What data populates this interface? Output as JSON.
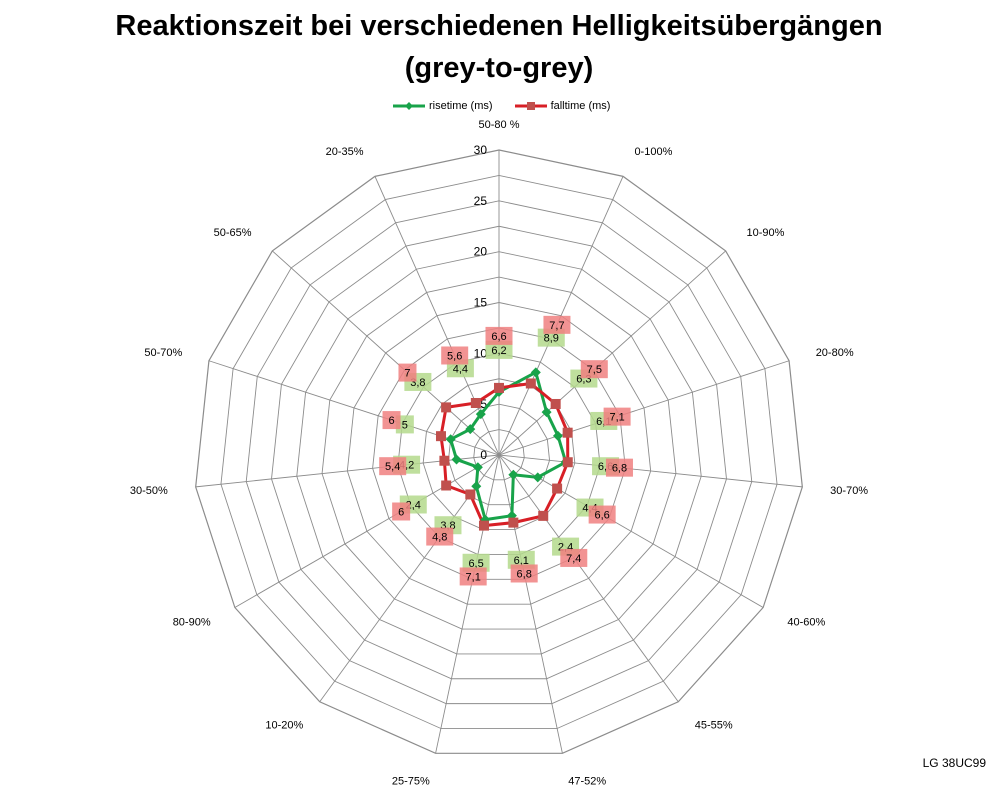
{
  "chart_data": {
    "type": "radar",
    "title": "Reaktionszeit bei verschiedenen Helligkeitsübergängen",
    "subtitle": "(grey-to-grey)",
    "categories": [
      "50-80 %",
      "0-100%",
      "10-90%",
      "20-80%",
      "30-70%",
      "40-60%",
      "45-55%",
      "47-52%",
      "25-75%",
      "10-20%",
      "80-90%",
      "30-50%",
      "50-70%",
      "50-65%",
      "20-35%"
    ],
    "radial_ticks": [
      "0",
      "5",
      "10",
      "15",
      "20",
      "25",
      "30"
    ],
    "rlim": [
      0,
      30
    ],
    "legend_position": "top",
    "series": [
      {
        "name": "risetime (ms)",
        "color": "#18a34a",
        "values": [
          6.2,
          8.9,
          6.3,
          6.1,
          6.6,
          4.4,
          2.4,
          6.1,
          6.5,
          3.8,
          2.4,
          4.2,
          5,
          3.8,
          4.4
        ]
      },
      {
        "name": "falltime (ms)",
        "color": "#d81f26",
        "values": [
          6.6,
          7.7,
          7.5,
          7.1,
          6.8,
          6.6,
          7.4,
          6.8,
          7.1,
          4.8,
          6,
          5.4,
          6,
          7,
          5.6
        ]
      }
    ],
    "data_labels": {
      "rise": [
        "6,2",
        "8,9",
        "6,3",
        "6,1",
        "6,6",
        "4,4",
        "2,4",
        "6,1",
        "6,5",
        "3,8",
        "2,4",
        "4,2",
        "5",
        "3,8",
        "4,4"
      ],
      "fall": [
        "6,6",
        "7,7",
        "7,5",
        "7,1",
        "6,8",
        "6,6",
        "7,4",
        "6,8",
        "7,1",
        "4,8",
        "6",
        "5,4",
        "6",
        "7",
        "5,6"
      ]
    }
  },
  "credit": "LG 38UC99",
  "colors": {
    "grid": "#8c8c8c",
    "rise_label_bg": "#b4d98c",
    "fall_label_bg": "#f08080"
  }
}
